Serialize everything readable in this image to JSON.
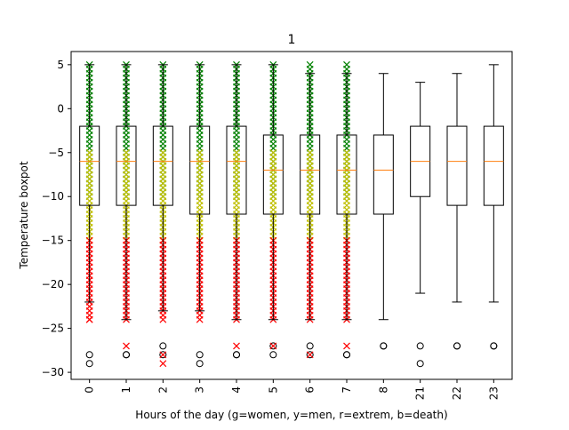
{
  "chart_data": {
    "type": "boxplot",
    "title": "1",
    "xlabel": "Hours of the day (g=women, y=men, r=extrem, b=death)",
    "ylabel": "Temperature boxpot",
    "ylim": [
      -30.8,
      6.5
    ],
    "yticks": [
      5,
      0,
      -5,
      -10,
      -15,
      -20,
      -25,
      -30
    ],
    "categories": [
      "0",
      "1",
      "2",
      "3",
      "4",
      "5",
      "6",
      "7",
      "8",
      "21",
      "22",
      "23"
    ],
    "boxes": [
      {
        "q1": -11,
        "median": -6,
        "q3": -2,
        "whisker_low": -22,
        "whisker_high": 5,
        "outliers": [
          -28,
          -29
        ]
      },
      {
        "q1": -11,
        "median": -6,
        "q3": -2,
        "whisker_low": -24,
        "whisker_high": 5,
        "outliers": [
          -28,
          -28
        ]
      },
      {
        "q1": -11,
        "median": -6,
        "q3": -2,
        "whisker_low": -23,
        "whisker_high": 5,
        "outliers": [
          -27,
          -28
        ]
      },
      {
        "q1": -12,
        "median": -6,
        "q3": -2,
        "whisker_low": -23,
        "whisker_high": 5,
        "outliers": [
          -28,
          -29
        ]
      },
      {
        "q1": -12,
        "median": -6,
        "q3": -2,
        "whisker_low": -24,
        "whisker_high": 5,
        "outliers": [
          -28,
          -28
        ]
      },
      {
        "q1": -12,
        "median": -7,
        "q3": -3,
        "whisker_low": -24,
        "whisker_high": 5,
        "outliers": [
          -27,
          -28
        ]
      },
      {
        "q1": -12,
        "median": -7,
        "q3": -3,
        "whisker_low": -24,
        "whisker_high": 4,
        "outliers": [
          -27,
          -28
        ]
      },
      {
        "q1": -12,
        "median": -7,
        "q3": -3,
        "whisker_low": -24,
        "whisker_high": 4,
        "outliers": [
          -28,
          -28
        ]
      },
      {
        "q1": -12,
        "median": -7,
        "q3": -3,
        "whisker_low": -24,
        "whisker_high": 4,
        "outliers": [
          -27,
          -27
        ]
      },
      {
        "q1": -10,
        "median": -6,
        "q3": -2,
        "whisker_low": -21,
        "whisker_high": 3,
        "outliers": [
          -27,
          -29
        ]
      },
      {
        "q1": -11,
        "median": -6,
        "q3": -2,
        "whisker_low": -22,
        "whisker_high": 4,
        "outliers": [
          -27,
          -27
        ]
      },
      {
        "q1": -11,
        "median": -6,
        "q3": -2,
        "whisker_low": -22,
        "whisker_high": 5,
        "outliers": [
          -27,
          -27
        ]
      }
    ],
    "scatter_series": [
      {
        "color": "#008000",
        "marker": "x",
        "x_categories": [
          "0",
          "1",
          "2",
          "3",
          "4",
          "5",
          "6",
          "7"
        ],
        "y_range": [
          -10,
          5
        ]
      },
      {
        "color": "#bfbf00",
        "marker": "x",
        "x_categories": [
          "0",
          "1",
          "2",
          "3",
          "4",
          "5",
          "6",
          "7"
        ],
        "y_range": [
          -15,
          -5
        ]
      },
      {
        "color": "#ff0000",
        "marker": "x",
        "x_categories": [
          "0",
          "1",
          "2",
          "3",
          "4",
          "5",
          "6",
          "7"
        ],
        "y_range": [
          -24,
          -15
        ]
      },
      {
        "color": "#ff0000",
        "marker": "x",
        "points": [
          [
            0,
            -24
          ],
          [
            1,
            -27
          ],
          [
            2,
            -28
          ],
          [
            2,
            -29
          ],
          [
            4,
            -27
          ],
          [
            5,
            -27
          ],
          [
            6,
            -28
          ],
          [
            7,
            -27
          ]
        ]
      }
    ],
    "colors": {
      "box": "#000000",
      "median": "#ff7f0e",
      "axes": "#000000"
    },
    "grid": false
  }
}
